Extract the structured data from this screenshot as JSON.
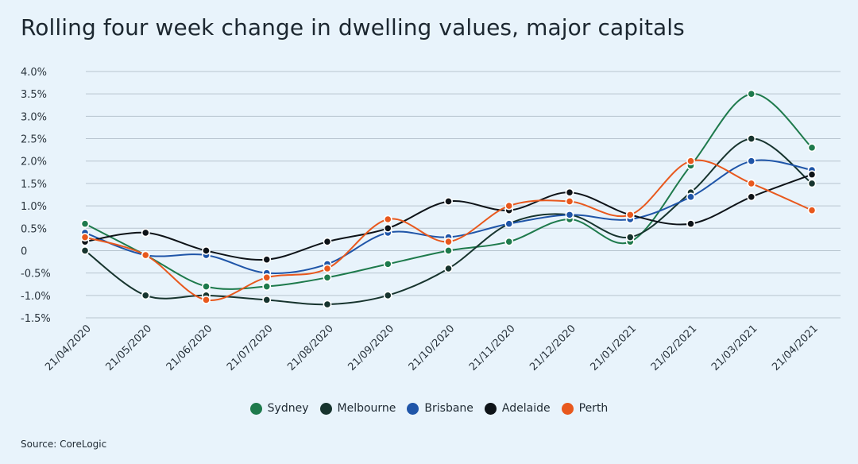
{
  "chart_data": {
    "type": "line",
    "title": "Rolling four week change in dwelling values, major capitals",
    "source": "Source: CoreLogic",
    "xlabel": "",
    "ylabel": "",
    "x": [
      "21/04/2020",
      "21/05/2020",
      "21/06/2020",
      "21/07/2020",
      "21/08/2020",
      "21/09/2020",
      "21/10/2020",
      "21/11/2020",
      "21/12/2020",
      "21/01/2021",
      "21/02/2021",
      "21/03/2021",
      "21/04/2021"
    ],
    "ylim": [
      -1.5,
      4.0
    ],
    "yticks": [
      {
        "value": 4.0,
        "label": "4.0%"
      },
      {
        "value": 3.5,
        "label": "3.5%"
      },
      {
        "value": 3.0,
        "label": "3.0%"
      },
      {
        "value": 2.5,
        "label": "2.5%"
      },
      {
        "value": 2.0,
        "label": "2.0%"
      },
      {
        "value": 1.5,
        "label": "1.5%"
      },
      {
        "value": 1.0,
        "label": "1.0%"
      },
      {
        "value": 0.5,
        "label": "0.5%"
      },
      {
        "value": 0.0,
        "label": "0"
      },
      {
        "value": -0.5,
        "label": "-0.5%"
      },
      {
        "value": -1.0,
        "label": "-1.0%"
      },
      {
        "value": -1.5,
        "label": "-1.5%"
      }
    ],
    "grid": true,
    "legend_position": "bottom",
    "series": [
      {
        "name": "Sydney",
        "color": "#1e7a4c",
        "values": [
          0.6,
          -0.1,
          -0.8,
          -0.8,
          -0.6,
          -0.3,
          0.0,
          0.2,
          0.7,
          0.2,
          1.9,
          3.5,
          2.3
        ]
      },
      {
        "name": "Melbourne",
        "color": "#17342e",
        "values": [
          0.0,
          -1.0,
          -1.0,
          -1.1,
          -1.2,
          -1.0,
          -0.4,
          0.6,
          0.8,
          0.3,
          1.3,
          2.5,
          1.5
        ]
      },
      {
        "name": "Brisbane",
        "color": "#1f55a8",
        "values": [
          0.4,
          -0.1,
          -0.1,
          -0.5,
          -0.3,
          0.4,
          0.3,
          0.6,
          0.8,
          0.7,
          1.2,
          2.0,
          1.8
        ]
      },
      {
        "name": "Adelaide",
        "color": "#0e1318",
        "values": [
          0.2,
          0.4,
          0.0,
          -0.2,
          0.2,
          0.5,
          1.1,
          0.9,
          1.3,
          0.8,
          0.6,
          1.2,
          1.7
        ]
      },
      {
        "name": "Perth",
        "color": "#e8581d",
        "values": [
          0.3,
          -0.1,
          -1.1,
          -0.6,
          -0.4,
          0.7,
          0.2,
          1.0,
          1.1,
          0.8,
          2.0,
          1.5,
          0.9
        ]
      }
    ]
  }
}
